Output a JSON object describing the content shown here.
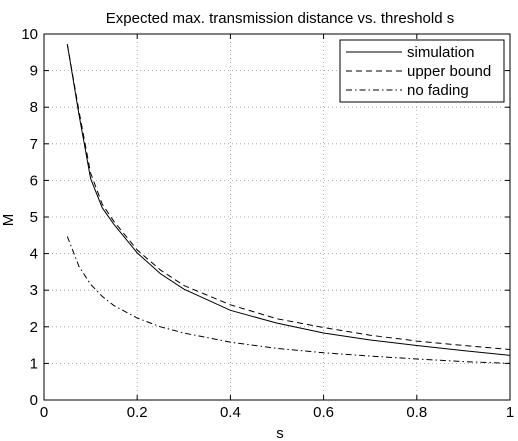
{
  "chart_data": {
    "type": "line",
    "title": "Expected max. transmission distance vs. threshold s",
    "xlabel": "s",
    "ylabel": "M",
    "xlim": [
      0,
      1
    ],
    "ylim": [
      0,
      10
    ],
    "xticks": [
      0,
      0.2,
      0.4,
      0.6,
      0.8,
      1
    ],
    "xtick_labels": [
      "0",
      "0.2",
      "0.4",
      "0.6",
      "0.8",
      "1"
    ],
    "yticks": [
      0,
      1,
      2,
      3,
      4,
      5,
      6,
      7,
      8,
      9,
      10
    ],
    "ytick_labels": [
      "0",
      "1",
      "2",
      "3",
      "4",
      "5",
      "6",
      "7",
      "8",
      "9",
      "10"
    ],
    "grid": true,
    "legend_position": "top-right",
    "series": [
      {
        "name": "simulation",
        "style": "solid",
        "x": [
          0.05,
          0.075,
          0.1,
          0.125,
          0.15,
          0.2,
          0.25,
          0.3,
          0.4,
          0.5,
          0.6,
          0.7,
          0.8,
          0.9,
          1.0
        ],
        "y": [
          9.72,
          7.8,
          6.05,
          5.25,
          4.8,
          4.02,
          3.45,
          3.03,
          2.45,
          2.1,
          1.83,
          1.64,
          1.49,
          1.35,
          1.22
        ]
      },
      {
        "name": "upper bound",
        "style": "dashed",
        "x": [
          0.05,
          0.075,
          0.1,
          0.125,
          0.15,
          0.2,
          0.25,
          0.3,
          0.4,
          0.5,
          0.6,
          0.7,
          0.8,
          0.9,
          1.0
        ],
        "y": [
          9.72,
          7.9,
          6.2,
          5.35,
          4.88,
          4.1,
          3.55,
          3.13,
          2.6,
          2.22,
          1.98,
          1.77,
          1.61,
          1.49,
          1.38
        ]
      },
      {
        "name": "no fading",
        "style": "dashdot",
        "x": [
          0.05,
          0.075,
          0.1,
          0.125,
          0.15,
          0.2,
          0.25,
          0.3,
          0.4,
          0.5,
          0.6,
          0.7,
          0.8,
          0.9,
          1.0
        ],
        "y": [
          4.47,
          3.65,
          3.16,
          2.83,
          2.58,
          2.24,
          2.0,
          1.83,
          1.58,
          1.41,
          1.29,
          1.2,
          1.12,
          1.05,
          1.0
        ]
      }
    ]
  }
}
